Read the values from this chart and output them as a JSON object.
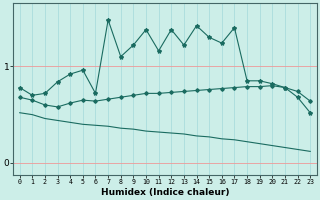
{
  "xlabel": "Humidex (Indice chaleur)",
  "background_color": "#cceee8",
  "line_color": "#1a6b60",
  "grid_h_color": "#ee9999",
  "grid_v_color": "#aadddd",
  "x": [
    0,
    1,
    2,
    3,
    4,
    5,
    6,
    7,
    8,
    9,
    10,
    11,
    12,
    13,
    14,
    15,
    16,
    17,
    18,
    19,
    20,
    21,
    22,
    23
  ],
  "line1": [
    0.78,
    0.7,
    0.72,
    0.84,
    0.92,
    0.96,
    0.72,
    1.48,
    1.1,
    1.22,
    1.38,
    1.16,
    1.38,
    1.22,
    1.42,
    1.3,
    1.24,
    1.4,
    0.85,
    0.85,
    0.82,
    0.78,
    0.68,
    0.52
  ],
  "line2": [
    0.68,
    0.65,
    0.6,
    0.58,
    0.62,
    0.65,
    0.64,
    0.66,
    0.68,
    0.7,
    0.72,
    0.72,
    0.73,
    0.74,
    0.75,
    0.76,
    0.77,
    0.78,
    0.79,
    0.79,
    0.8,
    0.78,
    0.74,
    0.64
  ],
  "line3": [
    0.52,
    0.5,
    0.46,
    0.44,
    0.42,
    0.4,
    0.39,
    0.38,
    0.36,
    0.35,
    0.33,
    0.32,
    0.31,
    0.3,
    0.28,
    0.27,
    0.25,
    0.24,
    0.22,
    0.2,
    0.18,
    0.16,
    0.14,
    0.12
  ],
  "yticks": [
    0,
    1
  ],
  "ylim": [
    -0.12,
    1.65
  ],
  "xlim": [
    -0.5,
    23.5
  ],
  "figsize": [
    3.2,
    2.0
  ],
  "dpi": 100
}
